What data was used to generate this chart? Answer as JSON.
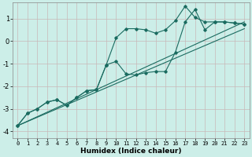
{
  "xlabel": "Humidex (Indice chaleur)",
  "bg_color": "#cceee8",
  "grid_color": "#b0d8d0",
  "line_color": "#1a6b60",
  "xlim": [
    -0.5,
    23.5
  ],
  "ylim": [
    -4.3,
    1.7
  ],
  "yticks": [
    -4,
    -3,
    -2,
    -1,
    0,
    1
  ],
  "xticks": [
    0,
    1,
    2,
    3,
    4,
    5,
    6,
    7,
    8,
    9,
    10,
    11,
    12,
    13,
    14,
    15,
    16,
    17,
    18,
    19,
    20,
    21,
    22,
    23
  ],
  "curve1_x": [
    0,
    1,
    2,
    3,
    4,
    5,
    6,
    7,
    8,
    9,
    10,
    11,
    12,
    13,
    14,
    15,
    16,
    17,
    18,
    19,
    20,
    21,
    22,
    23
  ],
  "curve1_y": [
    -3.75,
    -3.2,
    -3.0,
    -2.7,
    -2.6,
    -2.85,
    -2.5,
    -2.2,
    -2.15,
    -1.05,
    0.15,
    0.55,
    0.55,
    0.5,
    0.35,
    0.5,
    0.9,
    1.55,
    1.05,
    0.85,
    0.85,
    0.85,
    0.8,
    0.75
  ],
  "curve2_x": [
    0,
    1,
    2,
    3,
    4,
    5,
    6,
    7,
    8,
    9,
    10,
    11,
    12,
    13,
    14,
    15,
    16,
    17,
    18,
    19,
    20,
    21,
    22,
    23
  ],
  "curve2_y": [
    -3.75,
    -3.2,
    -3.0,
    -2.7,
    -2.6,
    -2.85,
    -2.5,
    -2.2,
    -2.15,
    -1.05,
    -0.9,
    -1.45,
    -1.5,
    -1.4,
    -1.35,
    -1.35,
    -0.5,
    0.85,
    1.4,
    0.5,
    0.85,
    0.85,
    0.8,
    0.75
  ],
  "trend1_x": [
    0,
    23
  ],
  "trend1_y": [
    -3.75,
    0.85
  ],
  "trend2_x": [
    0,
    23
  ],
  "trend2_y": [
    -3.75,
    0.55
  ]
}
